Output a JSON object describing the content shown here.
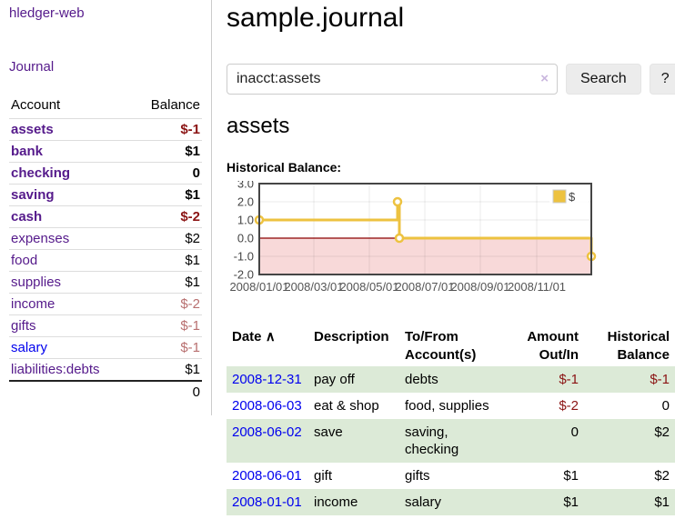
{
  "sidebar": {
    "app_title": "hledger-web",
    "nav": {
      "journal_label": "Journal"
    },
    "accounts_table": {
      "headers": {
        "account": "Account",
        "balance": "Balance"
      },
      "rows": [
        {
          "name": "assets",
          "depth": 1,
          "bold": true,
          "link_color": "purple",
          "balance": "$-1",
          "balance_tone": "neg_strong"
        },
        {
          "name": "bank",
          "depth": 2,
          "bold": true,
          "link_color": "purple",
          "balance": "$1",
          "balance_tone": null
        },
        {
          "name": "checking",
          "depth": 3,
          "bold": true,
          "link_color": "purple",
          "balance": "0",
          "balance_tone": null
        },
        {
          "name": "saving",
          "depth": 3,
          "bold": true,
          "link_color": "purple",
          "balance": "$1",
          "balance_tone": null
        },
        {
          "name": "cash",
          "depth": 2,
          "bold": true,
          "link_color": "purple",
          "balance": "$-2",
          "balance_tone": "neg_strong"
        },
        {
          "name": "expenses",
          "depth": 1,
          "bold": false,
          "link_color": "purple",
          "balance": "$2",
          "balance_tone": null
        },
        {
          "name": "food",
          "depth": 2,
          "bold": false,
          "link_color": "purple",
          "balance": "$1",
          "balance_tone": null
        },
        {
          "name": "supplies",
          "depth": 2,
          "bold": false,
          "link_color": "purple",
          "balance": "$1",
          "balance_tone": null
        },
        {
          "name": "income",
          "depth": 1,
          "bold": false,
          "link_color": "purple",
          "balance": "$-2",
          "balance_tone": "neg_soft"
        },
        {
          "name": "gifts",
          "depth": 2,
          "bold": false,
          "link_color": "purple",
          "balance": "$-1",
          "balance_tone": "neg_soft"
        },
        {
          "name": "salary",
          "depth": 2,
          "bold": false,
          "link_color": "blue",
          "balance": "$-1",
          "balance_tone": "neg_soft"
        },
        {
          "name": "liabilities:debts",
          "depth": 1,
          "bold": false,
          "link_color": "purple",
          "balance": "$1",
          "balance_tone": null
        }
      ],
      "total": "0"
    }
  },
  "header": {
    "title": "sample.journal"
  },
  "search": {
    "value": "inacct:assets",
    "clear_icon": "×",
    "button_label": "Search",
    "help_label": "?"
  },
  "account_page": {
    "heading": "assets",
    "chart_label": "Historical Balance:"
  },
  "chart_data": {
    "type": "line",
    "title": "Historical Balance:",
    "step": true,
    "series": [
      {
        "name": "$",
        "color": "#edc240",
        "points": [
          {
            "date": "2008-01-01",
            "x": 0,
            "y": 1
          },
          {
            "date": "2008-06-01",
            "x": 152,
            "y": 2
          },
          {
            "date": "2008-06-03",
            "x": 154,
            "y": 0
          },
          {
            "date": "2008-12-31",
            "x": 365,
            "y": -1
          }
        ]
      }
    ],
    "xlim": [
      0,
      365
    ],
    "ylim": [
      -2,
      3
    ],
    "y_ticks": [
      {
        "v": 3,
        "label": "3.0"
      },
      {
        "v": 2,
        "label": "2.0"
      },
      {
        "v": 1,
        "label": "1.0"
      },
      {
        "v": 0,
        "label": "0.0"
      },
      {
        "v": -1,
        "label": "-1.0"
      },
      {
        "v": -2,
        "label": "-2.0"
      }
    ],
    "x_ticks": [
      {
        "v": 0,
        "label": "2008/01/01"
      },
      {
        "v": 60,
        "label": "2008/03/01"
      },
      {
        "v": 121,
        "label": "2008/05/01"
      },
      {
        "v": 182,
        "label": "2008/07/01"
      },
      {
        "v": 243,
        "label": "2008/09/01"
      },
      {
        "v": 305,
        "label": "2008/11/01"
      }
    ],
    "grid": true,
    "legend": {
      "position": "top-right",
      "label": "$"
    },
    "negative_region_color": "#f8d9d9",
    "zero_line_color": "#8b0000"
  },
  "register": {
    "headers": {
      "date": "Date",
      "sort_icon": "∧",
      "description": "Description",
      "tofrom": "To/From Account(s)",
      "amount": "Amount Out/In",
      "balance": "Historical Balance"
    },
    "rows": [
      {
        "date": "2008-12-31",
        "description": "pay off",
        "accounts": "debts",
        "amount": "$-1",
        "amount_neg": true,
        "balance": "$-1",
        "balance_neg": true,
        "shaded": true
      },
      {
        "date": "2008-06-03",
        "description": "eat & shop",
        "accounts": "food, supplies",
        "amount": "$-2",
        "amount_neg": true,
        "balance": "0",
        "balance_neg": false,
        "shaded": false
      },
      {
        "date": "2008-06-02",
        "description": "save",
        "accounts": "saving, checking",
        "amount": "0",
        "amount_neg": false,
        "balance": "$2",
        "balance_neg": false,
        "shaded": true
      },
      {
        "date": "2008-06-01",
        "description": "gift",
        "accounts": "gifts",
        "amount": "$1",
        "amount_neg": false,
        "balance": "$2",
        "balance_neg": false,
        "shaded": false
      },
      {
        "date": "2008-01-01",
        "description": "income",
        "accounts": "salary",
        "amount": "$1",
        "amount_neg": false,
        "balance": "$1",
        "balance_neg": false,
        "shaded": true
      }
    ]
  },
  "colors": {
    "accent_purple": "#551a8b",
    "link_blue": "#0000ee",
    "negative_strong": "#8b1414",
    "negative_soft": "#b86f6f",
    "row_green": "#dcead7",
    "series_gold": "#edc240",
    "negative_region_pink": "#f8d9d9",
    "zero_line_maroon": "#8b0000"
  }
}
